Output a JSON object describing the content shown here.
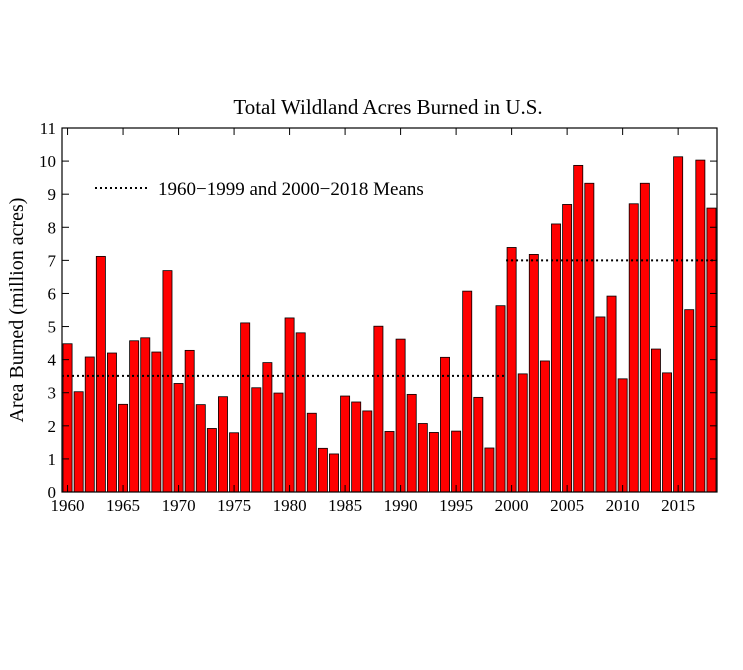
{
  "chart_data": {
    "type": "bar",
    "title": "Total Wildland Acres Burned in U.S.",
    "xlabel": "",
    "ylabel": "Area Burned (million acres)",
    "ylim": [
      0,
      11
    ],
    "xlim": [
      1960,
      2018
    ],
    "yticks": [
      "0",
      "1",
      "2",
      "3",
      "4",
      "5",
      "6",
      "7",
      "8",
      "9",
      "10",
      "11"
    ],
    "xticks": [
      "1960",
      "1965",
      "1970",
      "1975",
      "1980",
      "1985",
      "1990",
      "1995",
      "2000",
      "2005",
      "2010",
      "2015"
    ],
    "grid": false,
    "legend": {
      "label": "1960−1999 and 2000−2018 Means",
      "placement": "top-left"
    },
    "colors": {
      "bar": "#ff0000",
      "bar_edge": "#000000",
      "mean_line": "#000000"
    },
    "categories": [
      1960,
      1961,
      1962,
      1963,
      1964,
      1965,
      1966,
      1967,
      1968,
      1969,
      1970,
      1971,
      1972,
      1973,
      1974,
      1975,
      1976,
      1977,
      1978,
      1979,
      1980,
      1981,
      1982,
      1983,
      1984,
      1985,
      1986,
      1987,
      1988,
      1989,
      1990,
      1991,
      1992,
      1993,
      1994,
      1995,
      1996,
      1997,
      1998,
      1999,
      2000,
      2001,
      2002,
      2003,
      2004,
      2005,
      2006,
      2007,
      2008,
      2009,
      2010,
      2011,
      2012,
      2013,
      2014,
      2015,
      2016,
      2017,
      2018
    ],
    "values": [
      4.48,
      3.03,
      4.08,
      7.12,
      4.2,
      2.65,
      4.57,
      4.66,
      4.23,
      6.69,
      3.28,
      4.28,
      2.64,
      1.92,
      2.88,
      1.79,
      5.11,
      3.15,
      3.91,
      2.99,
      5.26,
      4.81,
      2.38,
      1.32,
      1.15,
      2.9,
      2.72,
      2.45,
      5.01,
      1.83,
      4.62,
      2.95,
      2.07,
      1.8,
      4.07,
      1.84,
      6.07,
      2.86,
      1.33,
      5.63,
      7.39,
      3.57,
      7.18,
      3.96,
      8.1,
      8.69,
      9.87,
      9.33,
      5.29,
      5.92,
      3.42,
      8.71,
      9.33,
      4.32,
      3.6,
      10.13,
      5.51,
      10.03,
      8.58
    ],
    "means": [
      {
        "name": "1960−1999",
        "x": [
          1960,
          1999
        ],
        "value": 3.51
      },
      {
        "name": "2000−2018",
        "x": [
          2000,
          2018
        ],
        "value": 7.0
      }
    ]
  }
}
